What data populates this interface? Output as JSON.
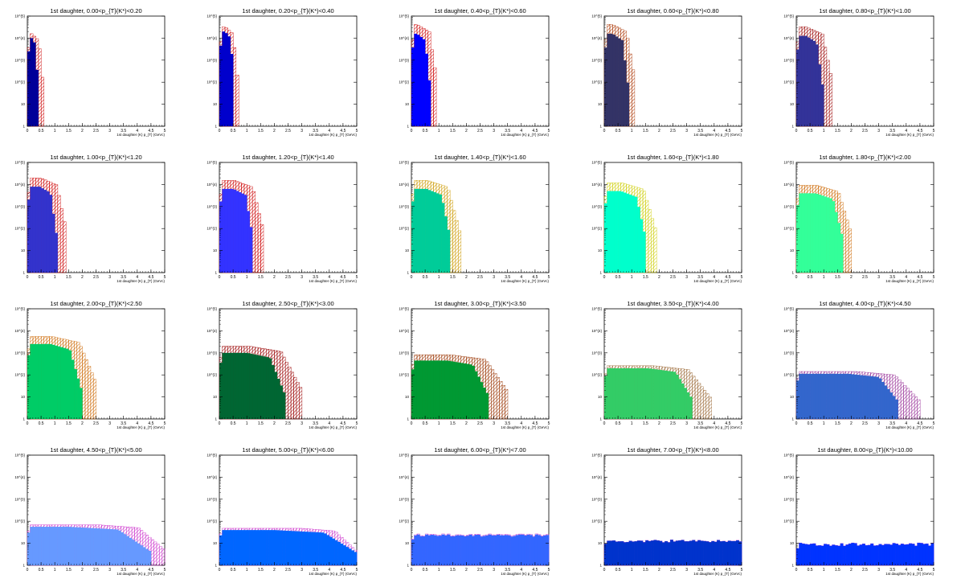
{
  "page": {
    "x_axis_label": "1st daughter (K) p_{T} (GeVc)",
    "x_ticks": [
      "0",
      "0.5",
      "1",
      "1.5",
      "2",
      "2.5",
      "3",
      "3.5",
      "4",
      "4.5",
      "5"
    ],
    "y_ticks": [
      "1",
      "10",
      "10^{2}",
      "10^{3}",
      "10^{4}",
      "10^{5}"
    ]
  },
  "chart_data": [
    {
      "type": "bar",
      "title": "1st daughter, 0.00<p_{T}(K*)<0.20",
      "bin_pt": 0.1,
      "scale": "log",
      "ylim": [
        1,
        100000
      ],
      "xlim": [
        0,
        5
      ],
      "fill": "#000099",
      "hatch": "#cc0000",
      "fill_end": 0.4,
      "hatch_end": 0.6,
      "peak_exp": 4.0,
      "fill_peak": 0.15,
      "hatch_peak": 0.15,
      "hatch_ratio": 1.05,
      "noise": 0
    },
    {
      "type": "bar",
      "title": "1st daughter, 0.20<p_{T}(K*)<0.40",
      "bin_pt": 0.1,
      "scale": "log",
      "ylim": [
        1,
        100000
      ],
      "xlim": [
        0,
        5
      ],
      "fill": "#0000cc",
      "hatch": "#cc0000",
      "fill_end": 0.55,
      "hatch_end": 0.7,
      "peak_exp": 4.3,
      "fill_peak": 0.2,
      "hatch_peak": 0.2,
      "hatch_ratio": 1.05,
      "noise": 0
    },
    {
      "type": "bar",
      "title": "1st daughter, 0.40<p_{T}(K*)<0.60",
      "bin_pt": 0.1,
      "scale": "log",
      "ylim": [
        1,
        100000
      ],
      "xlim": [
        0,
        5
      ],
      "fill": "#0000ff",
      "hatch": "#cc0000",
      "fill_end": 0.7,
      "hatch_end": 0.95,
      "peak_exp": 4.2,
      "fill_peak": 0.2,
      "hatch_peak": 0.2,
      "hatch_ratio": 1.1,
      "noise": 0
    },
    {
      "type": "bar",
      "title": "1st daughter, 0.60<p_{T}(K*)<0.80",
      "bin_pt": 0.1,
      "scale": "log",
      "ylim": [
        1,
        100000
      ],
      "xlim": [
        0,
        5
      ],
      "fill": "#333366",
      "hatch": "#aa3300",
      "fill_end": 0.9,
      "hatch_end": 1.15,
      "peak_exp": 4.2,
      "fill_peak": 0.3,
      "hatch_peak": 0.3,
      "hatch_ratio": 1.1,
      "noise": 0
    },
    {
      "type": "bar",
      "title": "1st daughter, 0.80<p_{T}(K*)<1.00",
      "bin_pt": 0.1,
      "scale": "log",
      "ylim": [
        1,
        100000
      ],
      "xlim": [
        0,
        5
      ],
      "fill": "#333399",
      "hatch": "#990000",
      "fill_end": 1.0,
      "hatch_end": 1.35,
      "peak_exp": 4.1,
      "fill_peak": 0.35,
      "hatch_peak": 0.35,
      "hatch_ratio": 1.1,
      "noise": 0
    },
    {
      "type": "bar",
      "title": "1st daughter, 1.00<p_{T}(K*)<1.20",
      "bin_pt": 0.1,
      "scale": "log",
      "ylim": [
        1,
        100000
      ],
      "xlim": [
        0,
        5
      ],
      "fill": "#3333cc",
      "hatch": "#cc0000",
      "fill_end": 1.1,
      "hatch_end": 1.45,
      "peak_exp": 3.9,
      "fill_peak": 0.45,
      "hatch_peak": 0.5,
      "hatch_ratio": 1.1,
      "noise": 0
    },
    {
      "type": "bar",
      "title": "1st daughter, 1.20<p_{T}(K*)<1.40",
      "bin_pt": 0.1,
      "scale": "log",
      "ylim": [
        1,
        100000
      ],
      "xlim": [
        0,
        5
      ],
      "fill": "#3333ff",
      "hatch": "#cc0000",
      "fill_end": 1.25,
      "hatch_end": 1.65,
      "peak_exp": 3.8,
      "fill_peak": 0.5,
      "hatch_peak": 0.55,
      "hatch_ratio": 1.1,
      "noise": 0
    },
    {
      "type": "bar",
      "title": "1st daughter, 1.40<p_{T}(K*)<1.60",
      "bin_pt": 0.1,
      "scale": "log",
      "ylim": [
        1,
        100000
      ],
      "xlim": [
        0,
        5
      ],
      "fill": "#00cc99",
      "hatch": "#cc9900",
      "fill_end": 1.45,
      "hatch_end": 1.8,
      "peak_exp": 3.8,
      "fill_peak": 0.55,
      "hatch_peak": 0.6,
      "hatch_ratio": 1.1,
      "noise": 0
    },
    {
      "type": "bar",
      "title": "1st daughter, 1.60<p_{T}(K*)<1.80",
      "bin_pt": 0.1,
      "scale": "log",
      "ylim": [
        1,
        100000
      ],
      "xlim": [
        0,
        5
      ],
      "fill": "#00ffcc",
      "hatch": "#cccc00",
      "fill_end": 1.55,
      "hatch_end": 1.95,
      "peak_exp": 3.7,
      "fill_peak": 0.6,
      "hatch_peak": 0.65,
      "hatch_ratio": 1.1,
      "noise": 0
    },
    {
      "type": "bar",
      "title": "1st daughter, 1.80<p_{T}(K*)<2.00",
      "bin_pt": 0.1,
      "scale": "log",
      "ylim": [
        1,
        100000
      ],
      "xlim": [
        0,
        5
      ],
      "fill": "#33ff99",
      "hatch": "#cc6600",
      "fill_end": 1.75,
      "hatch_end": 2.05,
      "peak_exp": 3.6,
      "fill_peak": 0.7,
      "hatch_peak": 0.75,
      "hatch_ratio": 1.1,
      "noise": 0
    },
    {
      "type": "bar",
      "title": "1st daughter, 2.00<p_{T}(K*)<2.50",
      "bin_pt": 0.1,
      "scale": "log",
      "ylim": [
        1,
        100000
      ],
      "xlim": [
        0,
        5
      ],
      "fill": "#00cc66",
      "hatch": "#cc6600",
      "fill_end": 2.0,
      "hatch_end": 2.55,
      "peak_exp": 3.4,
      "fill_peak": 0.85,
      "hatch_peak": 0.9,
      "hatch_ratio": 1.1,
      "noise": 0
    },
    {
      "type": "bar",
      "title": "1st daughter, 2.50<p_{T}(K*)<3.00",
      "bin_pt": 0.1,
      "scale": "log",
      "ylim": [
        1,
        100000
      ],
      "xlim": [
        0,
        5
      ],
      "fill": "#006633",
      "hatch": "#990000",
      "fill_end": 2.4,
      "hatch_end": 3.0,
      "peak_exp": 3.0,
      "fill_peak": 1.0,
      "hatch_peak": 1.1,
      "hatch_ratio": 1.1,
      "noise": 0
    },
    {
      "type": "bar",
      "title": "1st daughter, 3.00<p_{T}(K*)<3.50",
      "bin_pt": 0.1,
      "scale": "log",
      "ylim": [
        1,
        100000
      ],
      "xlim": [
        0,
        5
      ],
      "fill": "#009933",
      "hatch": "#993300",
      "fill_end": 2.85,
      "hatch_end": 3.55,
      "peak_exp": 2.65,
      "fill_peak": 1.3,
      "hatch_peak": 1.4,
      "hatch_ratio": 1.1,
      "noise": 0
    },
    {
      "type": "bar",
      "title": "1st daughter, 3.50<p_{T}(K*)<4.00",
      "bin_pt": 0.1,
      "scale": "log",
      "ylim": [
        1,
        100000
      ],
      "xlim": [
        0,
        5
      ],
      "fill": "#33cc66",
      "hatch": "#996633",
      "fill_end": 3.25,
      "hatch_end": 3.9,
      "peak_exp": 2.3,
      "fill_peak": 1.6,
      "hatch_peak": 1.8,
      "hatch_ratio": 1.05,
      "noise": 0
    },
    {
      "type": "bar",
      "title": "1st daughter, 4.00<p_{T}(K*)<4.50",
      "bin_pt": 0.1,
      "scale": "log",
      "ylim": [
        1,
        100000
      ],
      "xlim": [
        0,
        5
      ],
      "fill": "#3366cc",
      "hatch": "#993399",
      "fill_end": 3.75,
      "hatch_end": 4.5,
      "peak_exp": 2.05,
      "fill_peak": 1.9,
      "hatch_peak": 2.2,
      "hatch_ratio": 1.05,
      "noise": 0
    },
    {
      "type": "bar",
      "title": "1st daughter, 4.50<p_{T}(K*)<5.00",
      "bin_pt": 0.1,
      "scale": "log",
      "ylim": [
        1,
        100000
      ],
      "xlim": [
        0,
        5
      ],
      "fill": "#6699ff",
      "hatch": "#cc33cc",
      "fill_end": 4.5,
      "hatch_end": 5.0,
      "peak_exp": 1.75,
      "fill_peak": 1.5,
      "hatch_peak": 2.6,
      "hatch_ratio": 1.05,
      "noise": 0
    },
    {
      "type": "bar",
      "title": "1st daughter, 5.00<p_{T}(K*)<6.00",
      "bin_pt": 0.1,
      "scale": "log",
      "ylim": [
        1,
        100000
      ],
      "xlim": [
        0,
        5
      ],
      "fill": "#0066ff",
      "hatch": "#cc33cc",
      "fill_end": 5.0,
      "hatch_end": 5.0,
      "peak_exp": 1.6,
      "fill_peak": 2.0,
      "hatch_peak": 3.0,
      "hatch_ratio": 1.05,
      "noise": 0
    },
    {
      "type": "bar",
      "title": "1st daughter, 6.00<p_{T}(K*)<7.00",
      "bin_pt": 0.1,
      "scale": "log",
      "ylim": [
        1,
        100000
      ],
      "xlim": [
        0,
        5
      ],
      "fill": "#3366ff",
      "hatch": "#cc33cc",
      "fill_end": 5.0,
      "hatch_end": 5.0,
      "peak_exp": 1.35,
      "fill_peak": 5.0,
      "hatch_peak": 5.0,
      "hatch_ratio": 1.02,
      "noise": 0.05
    },
    {
      "type": "bar",
      "title": "1st daughter, 7.00<p_{T}(K*)<8.00",
      "bin_pt": 0.1,
      "scale": "log",
      "ylim": [
        1,
        100000
      ],
      "xlim": [
        0,
        5
      ],
      "fill": "#0033cc",
      "hatch": "#cc33cc",
      "fill_end": 5.0,
      "hatch_end": 5.0,
      "peak_exp": 1.1,
      "fill_peak": 5.0,
      "hatch_peak": 5.0,
      "hatch_ratio": 1.0,
      "noise": 0.06
    },
    {
      "type": "bar",
      "title": "1st daughter, 8.00<p_{T}(K*)<10.00",
      "bin_pt": 0.1,
      "scale": "log",
      "ylim": [
        1,
        100000
      ],
      "xlim": [
        0,
        5
      ],
      "fill": "#0033ff",
      "hatch": "#cc33cc",
      "fill_end": 5.0,
      "hatch_end": 5.0,
      "peak_exp": 0.95,
      "fill_peak": 5.0,
      "hatch_peak": 5.0,
      "hatch_ratio": 1.0,
      "noise": 0.07
    }
  ]
}
